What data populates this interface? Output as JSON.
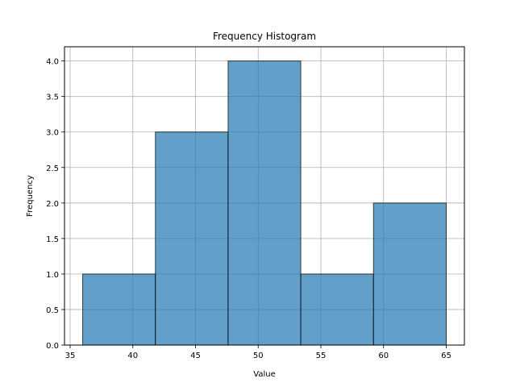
{
  "chart_data": {
    "type": "bar",
    "subtype": "histogram",
    "title": "Frequency Histogram",
    "xlabel": "Value",
    "ylabel": "Frequency",
    "bins": [
      {
        "start": 36.0,
        "end": 41.8,
        "count": 1
      },
      {
        "start": 41.8,
        "end": 47.6,
        "count": 3
      },
      {
        "start": 47.6,
        "end": 53.4,
        "count": 4
      },
      {
        "start": 53.4,
        "end": 59.2,
        "count": 1
      },
      {
        "start": 59.2,
        "end": 65.0,
        "count": 2
      }
    ],
    "xlim": [
      34.55,
      66.45
    ],
    "ylim": [
      0,
      4.2
    ],
    "xticks": [
      35,
      40,
      45,
      50,
      55,
      60,
      65
    ],
    "yticks": [
      0.0,
      0.5,
      1.0,
      1.5,
      2.0,
      2.5,
      3.0,
      3.5,
      4.0
    ],
    "xtick_labels": [
      "35",
      "40",
      "45",
      "50",
      "55",
      "60",
      "65"
    ],
    "ytick_labels": [
      "0.0",
      "0.5",
      "1.0",
      "1.5",
      "2.0",
      "2.5",
      "3.0",
      "3.5",
      "4.0"
    ],
    "grid": true,
    "bar_color": "#1f77b4",
    "bar_alpha": 0.7,
    "edge_color": "#000000",
    "grid_color": "#b0b0b0"
  }
}
